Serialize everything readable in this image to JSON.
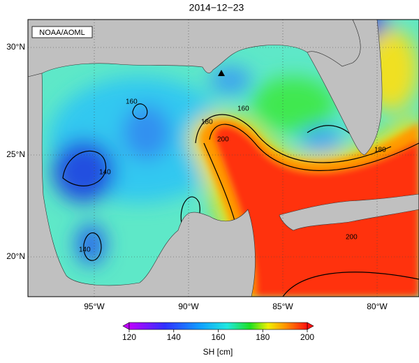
{
  "title": "2014−12−23",
  "source": "NOAA/AOML",
  "lat_labels": [
    "30°N",
    "25°N",
    "20°N"
  ],
  "lon_labels": [
    "95°W",
    "90°W",
    "85°W",
    "80°W"
  ],
  "contour_labels": [
    "160",
    "160",
    "140",
    "140",
    "180",
    "200",
    "200",
    "180"
  ],
  "colorbar": {
    "label": "SH [cm]",
    "range": [
      120,
      200
    ],
    "ticks": [
      120,
      140,
      160,
      180,
      200
    ]
  }
}
